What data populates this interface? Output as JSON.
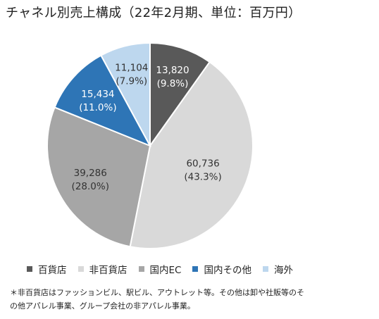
{
  "header": {
    "title": "チャネル別売上構成（22年2月期、単位：百万円）"
  },
  "chart_data": {
    "type": "pie",
    "title": "チャネル別売上構成（22年2月期、単位：百万円）",
    "slices": [
      {
        "name": "百貨店",
        "value": 13820,
        "value_label": "13,820",
        "pct_label": "(9.8%)",
        "color": "#595959",
        "text_color": "#ffffff"
      },
      {
        "name": "非百貨店",
        "value": 60736,
        "value_label": "60,736",
        "pct_label": "(43.3%)",
        "color": "#d9d9d9",
        "text_color": "#333333"
      },
      {
        "name": "国内EC",
        "value": 39286,
        "value_label": "39,286",
        "pct_label": "(28.0%)",
        "color": "#a6a6a6",
        "text_color": "#333333"
      },
      {
        "name": "国内その他",
        "value": 15434,
        "value_label": "15,434",
        "pct_label": "(11.0%)",
        "color": "#2e75b6",
        "text_color": "#ffffff"
      },
      {
        "name": "海外",
        "value": 11104,
        "value_label": "11,104",
        "pct_label": "(7.9%)",
        "color": "#bdd7ee",
        "text_color": "#333333"
      }
    ],
    "start_angle": "12 o'clock",
    "direction": "clockwise",
    "legend_position": "bottom"
  },
  "footnote": {
    "line1": "＊非百貨店はファッションビル、駅ビル、アウトレット等。その他は卸や社販等のそ",
    "line2": "の他アパレル事業、グループ会社の非アパレル事業。"
  }
}
